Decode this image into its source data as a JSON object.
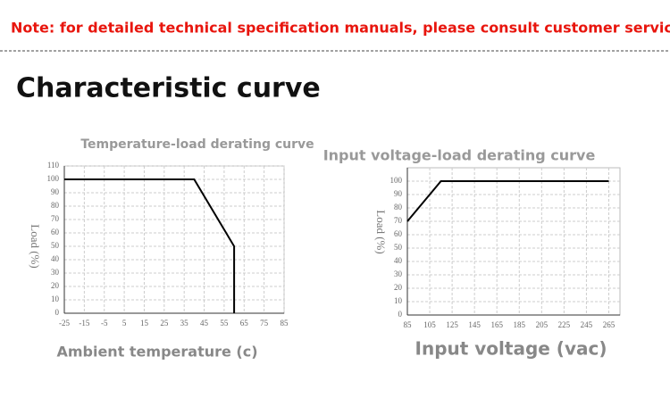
{
  "note": "Note: for detailed technical specification manuals, please consult customer service",
  "heading": "Characteristic curve",
  "chart_data": [
    {
      "type": "line",
      "title": "Temperature-load derating curve",
      "x_label": "Ambient temperature (c)",
      "y_label": "Load (%)",
      "x": [
        -25,
        40,
        60,
        60
      ],
      "values": [
        100,
        100,
        50,
        0
      ],
      "color": "#000000",
      "xlim": [
        -25,
        85
      ],
      "xticks": [
        -25,
        -15,
        -5,
        5,
        15,
        25,
        35,
        45,
        55,
        65,
        75,
        85
      ],
      "ylim": [
        0,
        110
      ],
      "yticks": [
        0,
        10,
        20,
        30,
        40,
        50,
        60,
        70,
        80,
        90,
        100,
        110
      ],
      "grid": true
    },
    {
      "type": "line",
      "title": "Input voltage-load derating curve",
      "x_label": "Input voltage (vac)",
      "y_label": "Load (%)",
      "x": [
        85,
        115,
        265
      ],
      "values": [
        70,
        100,
        100
      ],
      "color": "#000000",
      "xlim": [
        85,
        275
      ],
      "xticks": [
        85,
        105,
        125,
        145,
        165,
        185,
        205,
        225,
        245,
        265
      ],
      "ylim": [
        0,
        110
      ],
      "yticks": [
        0,
        10,
        20,
        30,
        40,
        50,
        60,
        70,
        80,
        90,
        100
      ],
      "grid": true
    }
  ]
}
